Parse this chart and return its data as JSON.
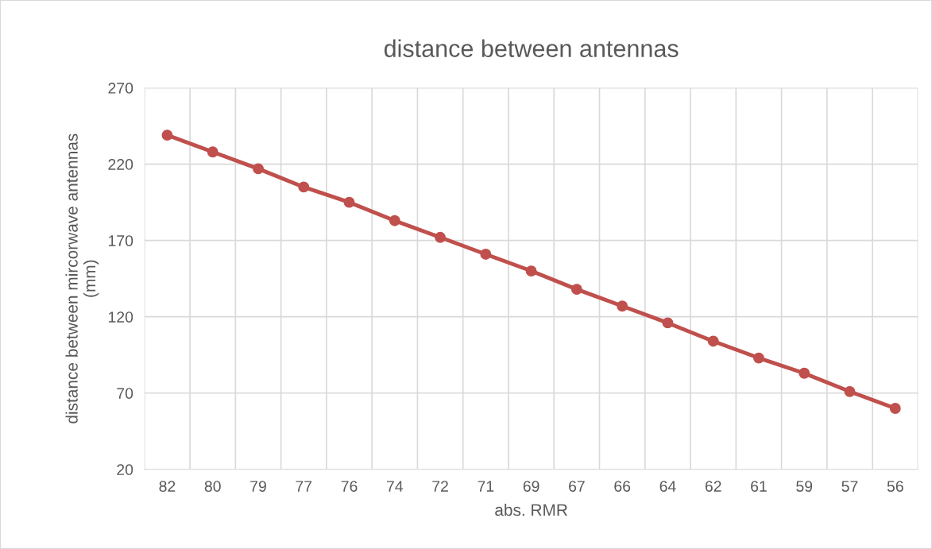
{
  "chart_data": {
    "type": "line",
    "title": "distance between antennas",
    "xlabel": "abs. RMR",
    "ylabel": "distance between mircorwave antennas\n(mm)",
    "categories": [
      "82",
      "80",
      "79",
      "77",
      "76",
      "74",
      "72",
      "71",
      "69",
      "67",
      "66",
      "64",
      "62",
      "61",
      "59",
      "57",
      "56"
    ],
    "series": [
      {
        "color": "#c0504d",
        "values": [
          239,
          228,
          217,
          205,
          195,
          183,
          172,
          161,
          150,
          138,
          127,
          116,
          104,
          93,
          83,
          71,
          60
        ]
      }
    ],
    "ylim": [
      20,
      270
    ],
    "yticks": [
      20,
      70,
      120,
      170,
      220,
      270
    ],
    "grid": true,
    "legend": false,
    "marker": "circle",
    "line_style": "solid"
  }
}
